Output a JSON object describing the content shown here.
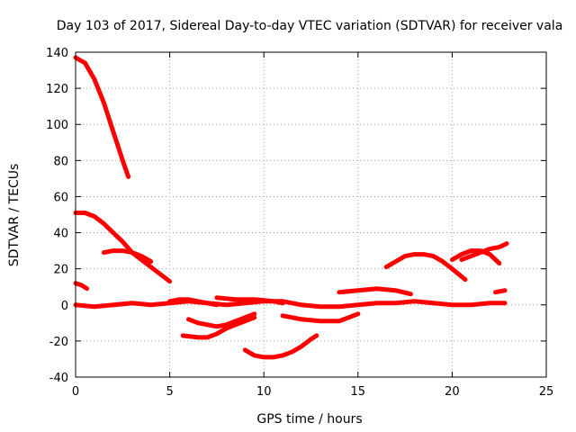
{
  "chart_data": {
    "type": "scatter",
    "title": "Day 103 of 2017, Sidereal Day-to-day VTEC variation (SDTVAR) for receiver vala",
    "xlabel": "GPS time / hours",
    "ylabel": "SDTVAR / TECUs",
    "xlim": [
      0,
      25
    ],
    "ylim": [
      -40,
      140
    ],
    "xticks": [
      0,
      5,
      10,
      15,
      20,
      25
    ],
    "yticks": [
      -40,
      -20,
      0,
      20,
      40,
      60,
      80,
      100,
      120,
      140
    ],
    "grid": true,
    "marker_color": "#ff0000",
    "series": [
      {
        "name": "s1",
        "x": [
          0.0,
          0.5,
          1.0,
          1.5,
          2.0,
          2.5,
          2.8
        ],
        "y": [
          137,
          134,
          125,
          112,
          96,
          80,
          71
        ]
      },
      {
        "name": "s2",
        "x": [
          0.0,
          0.5,
          1.0,
          1.5,
          2.0,
          2.5,
          3.0,
          4.0,
          5.0
        ],
        "y": [
          51,
          51,
          49,
          45,
          40,
          35,
          29,
          21,
          13
        ]
      },
      {
        "name": "s3",
        "x": [
          1.5,
          2.0,
          2.5,
          3.0,
          3.5,
          4.0
        ],
        "y": [
          29,
          30,
          30,
          29,
          27,
          24
        ]
      },
      {
        "name": "s4",
        "x": [
          0.0,
          0.3,
          0.6
        ],
        "y": [
          12,
          11,
          9
        ]
      },
      {
        "name": "s5",
        "x": [
          0.0,
          1.0,
          2.0,
          3.0,
          4.0,
          5.0,
          6.0,
          7.0,
          8.0,
          9.0,
          10.0,
          11.0,
          12.0,
          13.0,
          14.0,
          15.0,
          16.0,
          17.0,
          18.0,
          19.0,
          20.0,
          21.0,
          22.0,
          22.8
        ],
        "y": [
          0,
          -1,
          0,
          1,
          0,
          1,
          2,
          1,
          0,
          1,
          2,
          2,
          0,
          -1,
          -1,
          0,
          1,
          1,
          2,
          1,
          0,
          0,
          1,
          1
        ]
      },
      {
        "name": "s6",
        "x": [
          5.0,
          5.5,
          6.0,
          6.5,
          7.0,
          7.5
        ],
        "y": [
          2,
          3,
          3,
          2,
          1,
          0
        ]
      },
      {
        "name": "s7",
        "x": [
          6.0,
          6.5,
          7.0,
          7.5,
          8.0,
          8.5,
          9.0,
          9.5
        ],
        "y": [
          -8,
          -10,
          -11,
          -12,
          -11,
          -9,
          -7,
          -5
        ]
      },
      {
        "name": "s8",
        "x": [
          5.7,
          6.5,
          7.0,
          7.5,
          8.0,
          8.5,
          9.0,
          9.5
        ],
        "y": [
          -17,
          -18,
          -18,
          -16,
          -13,
          -11,
          -9,
          -7
        ]
      },
      {
        "name": "s9",
        "x": [
          7.5,
          8.5,
          9.5,
          10.5,
          11.0
        ],
        "y": [
          4,
          3,
          3,
          2,
          1
        ]
      },
      {
        "name": "s10",
        "x": [
          9.0,
          9.5,
          10.0,
          10.5,
          11.0,
          11.5,
          12.0,
          12.5,
          12.8
        ],
        "y": [
          -25,
          -28,
          -29,
          -29,
          -28,
          -26,
          -23,
          -19,
          -17
        ]
      },
      {
        "name": "s11",
        "x": [
          11.0,
          12.0,
          13.0,
          14.0,
          14.5,
          15.0
        ],
        "y": [
          -6,
          -8,
          -9,
          -9,
          -7,
          -5
        ]
      },
      {
        "name": "s12",
        "x": [
          14.0,
          15.0,
          16.0,
          17.0,
          17.8
        ],
        "y": [
          7,
          8,
          9,
          8,
          6
        ]
      },
      {
        "name": "s13",
        "x": [
          16.5,
          17.0,
          17.5,
          18.0,
          18.5,
          19.0,
          19.5,
          20.0,
          20.7
        ],
        "y": [
          21,
          24,
          27,
          28,
          28,
          27,
          24,
          20,
          14
        ]
      },
      {
        "name": "s14",
        "x": [
          20.0,
          20.5,
          21.0,
          21.5,
          22.0,
          22.5
        ],
        "y": [
          25,
          28,
          30,
          30,
          28,
          23
        ]
      },
      {
        "name": "s15",
        "x": [
          20.5,
          21.0,
          21.5,
          22.0,
          22.5,
          22.9
        ],
        "y": [
          25,
          27,
          29,
          31,
          32,
          34
        ]
      },
      {
        "name": "s16",
        "x": [
          22.3,
          22.8
        ],
        "y": [
          7,
          8
        ]
      }
    ]
  }
}
